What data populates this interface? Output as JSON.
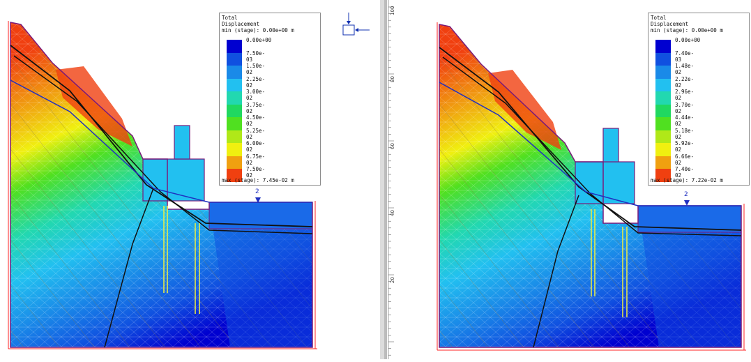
{
  "panels": [
    {
      "legend": {
        "title": "Total\nDisplacement",
        "min": "min (stage): 0.00e+00 m",
        "max": "max (stage): 7.45e-02 m",
        "entries": [
          {
            "label": "0.00e+00",
            "color": "#0000d0"
          },
          {
            "label": "7.50e-03",
            "color": "#1050e0"
          },
          {
            "label": "1.50e-02",
            "color": "#1a8ae8"
          },
          {
            "label": "2.25e-02",
            "color": "#22c0f0"
          },
          {
            "label": "3.00e-02",
            "color": "#22d8b0"
          },
          {
            "label": "3.75e-02",
            "color": "#20d860"
          },
          {
            "label": "4.50e-02",
            "color": "#50e020"
          },
          {
            "label": "5.25e-02",
            "color": "#b0e818"
          },
          {
            "label": "6.00e-02",
            "color": "#f0f010"
          },
          {
            "label": "6.75e-02",
            "color": "#f0a010"
          },
          {
            "label": "7.50e-02",
            "color": "#f04010"
          }
        ]
      },
      "water_table_label": "2"
    },
    {
      "legend": {
        "title": "Total\nDisplacement",
        "min": "min (stage): 0.00e+00 m",
        "max": "max (stage): 7.22e-02 m",
        "entries": [
          {
            "label": "0.00e+00",
            "color": "#0000d0"
          },
          {
            "label": "7.40e-03",
            "color": "#1050e0"
          },
          {
            "label": "1.48e-02",
            "color": "#1a8ae8"
          },
          {
            "label": "2.22e-02",
            "color": "#22c0f0"
          },
          {
            "label": "2.96e-02",
            "color": "#22d8b0"
          },
          {
            "label": "3.70e-02",
            "color": "#20d860"
          },
          {
            "label": "4.44e-02",
            "color": "#50e020"
          },
          {
            "label": "5.18e-02",
            "color": "#b0e818"
          },
          {
            "label": "5.92e-02",
            "color": "#f0f010"
          },
          {
            "label": "6.66e-02",
            "color": "#f0a010"
          },
          {
            "label": "7.40e-02",
            "color": "#f04010"
          }
        ]
      },
      "water_table_label": "2"
    }
  ],
  "ruler": {
    "ticks": [
      "100",
      "80",
      "60",
      "40",
      "20"
    ]
  },
  "colors": {
    "boundary": "#ff2020",
    "outline": "#7a1a7a",
    "water_table": "#2030c0",
    "bolt": "#f0f040"
  }
}
